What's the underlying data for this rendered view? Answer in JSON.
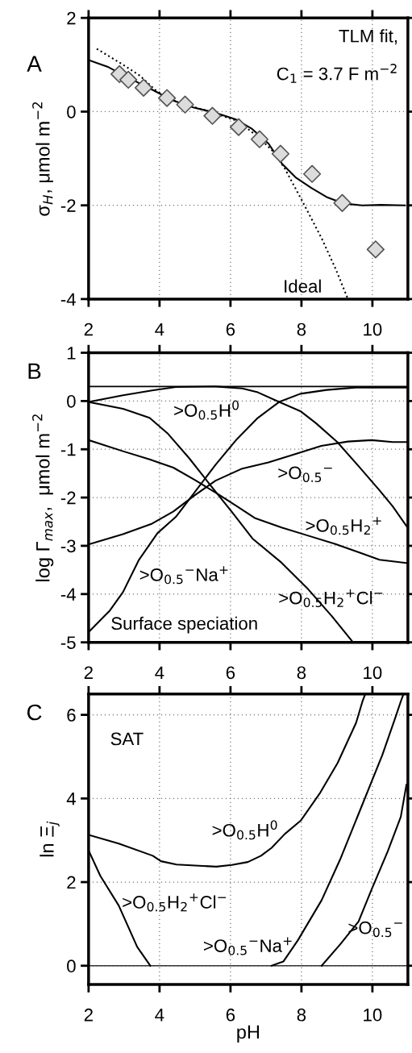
{
  "chart_data": [
    {
      "type": "line",
      "title": "A",
      "ylabel": "σ$_{H}$, μmol m$^{−2}$",
      "xlim": [
        2,
        11
      ],
      "xticks": [
        2,
        4,
        6,
        8,
        10
      ],
      "ylim": [
        -4,
        2
      ],
      "yticks": [
        -4,
        -2,
        0,
        2
      ],
      "grid": true,
      "series": [
        {
          "type": "scatter",
          "marker": "diamond",
          "color": "#dcdcdc",
          "x": [
            2.87,
            3.12,
            3.55,
            4.21,
            4.72,
            5.49,
            6.23,
            6.82,
            7.41,
            8.3,
            9.15,
            10.09
          ],
          "values": [
            0.8,
            0.68,
            0.51,
            0.29,
            0.15,
            -0.09,
            -0.33,
            -0.59,
            -0.9,
            -1.33,
            -1.95,
            -2.94
          ]
        },
        {
          "type": "line",
          "line_style": "dotted",
          "color": "#000000",
          "x": [
            2.23,
            2.91,
            3.44,
            3.9,
            4.5,
            5.5,
            6.2,
            6.8,
            7.2,
            7.52,
            8.01,
            8.58,
            8.96,
            9.3
          ],
          "values": [
            1.34,
            1.03,
            0.77,
            0.45,
            0.2,
            -0.02,
            -0.2,
            -0.55,
            -0.85,
            -1.2,
            -1.89,
            -2.72,
            -3.35,
            -3.98
          ]
        },
        {
          "type": "line",
          "line_style": "solid",
          "color": "#000000",
          "x": [
            2,
            2.53,
            3.13,
            3.74,
            4.34,
            4.95,
            5.55,
            6.16,
            6.61,
            7.07,
            7.45,
            7.83,
            8.28,
            8.73,
            9.18,
            9.71,
            10.24,
            10.92
          ],
          "values": [
            1.1,
            0.96,
            0.72,
            0.49,
            0.25,
            0.09,
            -0.02,
            -0.17,
            -0.37,
            -0.68,
            -1.11,
            -1.4,
            -1.63,
            -1.83,
            -1.96,
            -2.0,
            -1.99,
            -2.0
          ]
        }
      ],
      "annotations": [
        "TLM fit,",
        "C$_{1}$ = 3.7 F m$^{−2}$",
        "Ideal"
      ]
    },
    {
      "type": "line",
      "title": "B",
      "ylabel": "log Γ$_{max}$,  μmol m$^{−2}$",
      "xlim": [
        2,
        11
      ],
      "xticks": [
        2,
        4,
        6,
        8,
        10
      ],
      "ylim": [
        -5,
        1
      ],
      "yticks": [
        -5,
        -4,
        -3,
        -2,
        -1,
        0,
        1
      ],
      "grid": true,
      "ref_lines": [
        {
          "axis": "y",
          "value": 0.3,
          "color": "#000000"
        }
      ],
      "series": [
        {
          "color": "#000000",
          "x": [
            2,
            2.97,
            3.79,
            4.46,
            5.58,
            6.33,
            6.77,
            7.37,
            7.97,
            8.41,
            9.01,
            9.61,
            10.2,
            10.57,
            10.99
          ],
          "values": [
            -0.02,
            0.12,
            0.22,
            0.29,
            0.3,
            0.26,
            0.18,
            -0.02,
            -0.21,
            -0.46,
            -0.85,
            -1.35,
            -1.85,
            -2.18,
            -2.62
          ]
        },
        {
          "color": "#000000",
          "x": [
            2,
            2.97,
            3.72,
            4.39,
            4.98,
            5.65,
            6.18,
            6.7,
            7.44,
            8.19,
            8.94,
            9.68,
            10.2,
            10.99
          ],
          "values": [
            -0.81,
            -1.04,
            -1.21,
            -1.38,
            -1.63,
            -1.93,
            -2.18,
            -2.43,
            -2.62,
            -2.79,
            -2.96,
            -3.15,
            -3.29,
            -3.36
          ]
        },
        {
          "color": "#000000",
          "x": [
            2,
            2.97,
            3.79,
            4.39,
            4.98,
            5.58,
            6.33,
            7.07,
            7.82,
            8.56,
            9.31,
            9.98,
            10.57,
            10.99
          ],
          "values": [
            -2.97,
            -2.76,
            -2.54,
            -2.29,
            -1.96,
            -1.65,
            -1.4,
            -1.27,
            -1.1,
            -0.93,
            -0.84,
            -0.81,
            -0.85,
            -0.85
          ]
        },
        {
          "color": "#000000",
          "x": [
            2,
            2.6,
            2.97,
            3.42,
            3.94,
            4.46,
            4.98,
            5.58,
            6.18,
            6.77,
            7.37,
            7.97,
            8.71,
            9.53,
            10.99
          ],
          "values": [
            -4.79,
            -4.34,
            -3.96,
            -3.29,
            -2.74,
            -2.4,
            -1.9,
            -1.32,
            -0.79,
            -0.35,
            -0.02,
            0.15,
            0.23,
            0.28,
            0.28
          ]
        },
        {
          "color": "#000000",
          "x": [
            2,
            2.97,
            3.72,
            4.24,
            4.83,
            5.43,
            6.03,
            6.62,
            7.44,
            8.19,
            8.86,
            9.42
          ],
          "values": [
            -0.02,
            -0.16,
            -0.35,
            -0.68,
            -1.18,
            -1.74,
            -2.29,
            -2.85,
            -3.35,
            -3.9,
            -4.46,
            -4.97
          ]
        }
      ],
      "annotations": [
        "Surface speciation",
        ">O$_{0.5}$H$^{0}$",
        ">O$_{0.5}$$^{−}$",
        ">O$_{0.5}$H$_{2}$$^{+}$",
        ">O$_{0.5}$$^{−}$Na$^{+}$",
        ">O$_{0.5}$H$_{2}$$^{+}$Cl$^{−}$"
      ]
    },
    {
      "type": "line",
      "title": "C",
      "xlabel": "pH",
      "ylabel": "ln Ξ$_{j}$",
      "xlim": [
        2,
        11
      ],
      "xticks": [
        2,
        4,
        6,
        8,
        10
      ],
      "ylim": [
        -0.45,
        6.5
      ],
      "yticks": [
        0,
        2,
        4,
        6
      ],
      "grid": true,
      "ref_lines": [
        {
          "axis": "y",
          "value": 0,
          "color": "#333333"
        }
      ],
      "series": [
        {
          "color": "#000000",
          "x": [
            2,
            2.85,
            3.81,
            4.04,
            4.48,
            5.6,
            6.04,
            6.49,
            6.86,
            7.16,
            7.53,
            7.98,
            8.53,
            9.02,
            9.54,
            9.72,
            9.8
          ],
          "values": [
            3.13,
            2.92,
            2.63,
            2.5,
            2.42,
            2.37,
            2.41,
            2.48,
            2.63,
            2.82,
            3.15,
            3.47,
            4.14,
            4.85,
            5.81,
            6.32,
            6.5
          ]
        },
        {
          "color": "#000000",
          "x": [
            2,
            2.33,
            2.85,
            3.37,
            3.74
          ],
          "values": [
            2.76,
            2.15,
            1.44,
            0.45,
            0
          ]
        },
        {
          "color": "#000000",
          "x": [
            7.16,
            7.49,
            7.9,
            8.57,
            9.09,
            9.61,
            10.28,
            10.65,
            10.8,
            10.87
          ],
          "values": [
            0,
            0.1,
            0.61,
            1.57,
            2.54,
            3.63,
            5.04,
            5.94,
            6.32,
            6.48
          ]
        },
        {
          "color": "#000000",
          "x": [
            8.57,
            9.09,
            9.61,
            9.98,
            10.43,
            10.8,
            10.96
          ],
          "values": [
            0,
            0.51,
            1.06,
            1.83,
            2.73,
            3.56,
            4.33
          ]
        }
      ],
      "annotations": [
        "SAT",
        ">O$_{0.5}$H$^{0}$",
        ">O$_{0.5}$H$_{2}$$^{+}$Cl$^{−}$",
        ">O$_{0.5}$$^{−}$Na$^{+}$",
        ">O$_{0.5}$$^{−}$"
      ]
    }
  ]
}
